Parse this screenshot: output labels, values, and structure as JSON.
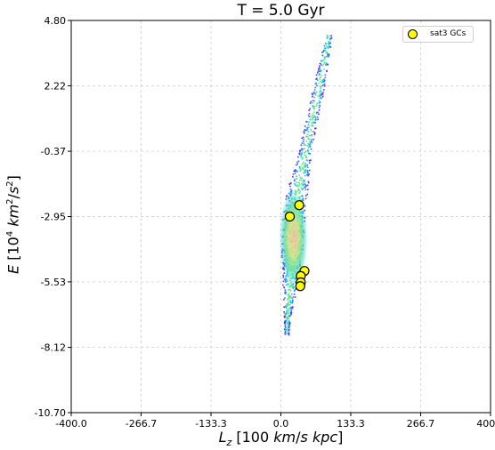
{
  "chart_data": {
    "type": "scatter",
    "title": "T = 5.0 Gyr",
    "xlabel": "L_z [100 km/s kpc]",
    "ylabel": "E [10^4 km^2/s^2]",
    "xlim": [
      -400.0,
      400.0
    ],
    "ylim": [
      -10.7,
      4.8
    ],
    "x_ticks": [
      "-400.0",
      "-266.7",
      "-133.3",
      "0.0",
      "133.3",
      "266.7",
      "400.0"
    ],
    "y_ticks": [
      "4.80",
      "2.22",
      "-0.37",
      "-2.95",
      "-5.53",
      "-8.12",
      "-10.70"
    ],
    "grid": true,
    "legend_position": "top-right",
    "series": [
      {
        "name": "sat3 GCs",
        "color": "#ffff00",
        "x": [
          35,
          17,
          45,
          38,
          38,
          37
        ],
        "y": [
          -2.5,
          -2.95,
          -5.1,
          -5.3,
          -5.55,
          -5.7
        ]
      }
    ],
    "background_density": {
      "description_colormap": "rainbow",
      "colors": [
        "#5b2ef5",
        "#2a7bff",
        "#15c9d8",
        "#6be28f",
        "#c5e07c",
        "#f2b39a"
      ]
    }
  }
}
